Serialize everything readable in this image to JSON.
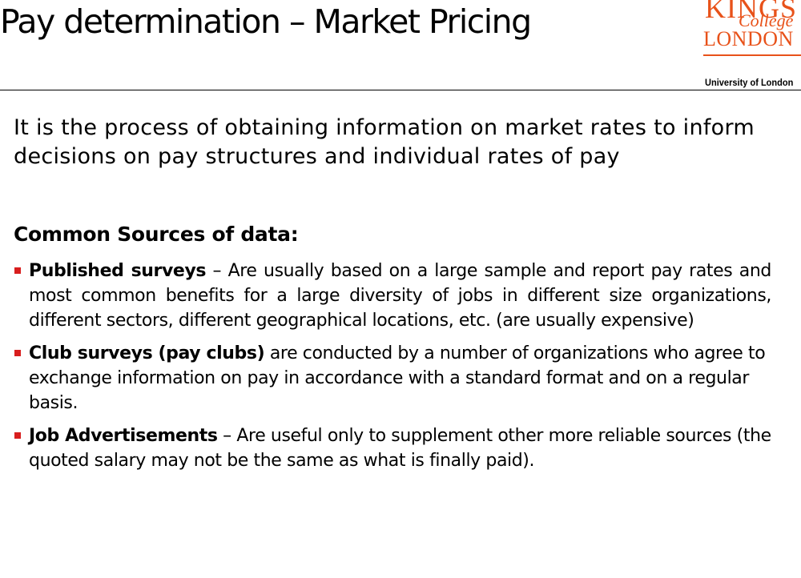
{
  "slide": {
    "title": "Pay determination – Market Pricing",
    "logo": {
      "line1": "KINGS",
      "line2": "College",
      "line3": "LONDON",
      "subtitle": "University of London",
      "color": "#e8521a"
    },
    "intro": "It is the process of obtaining information on market rates to inform decisions on pay structures and individual rates of pay",
    "heading": "Common Sources of data:",
    "bullet_color": "#d81e1e",
    "bullets": [
      {
        "term": "Published surveys",
        "text": " – Are usually based on a large sample and report pay rates and most common benefits for a large diversity of jobs in different size organizations, different sectors, different geographical locations, etc. (are usually expensive)"
      },
      {
        "term": "Club surveys (pay clubs)",
        "text": " are conducted by a number of organizations who agree to exchange information on pay in accordance with a standard format and on a regular basis."
      },
      {
        "term": "Job Advertisements",
        "text": " – Are useful only to supplement other more reliable sources (the quoted salary may not be the same as what is finally paid)."
      }
    ]
  }
}
